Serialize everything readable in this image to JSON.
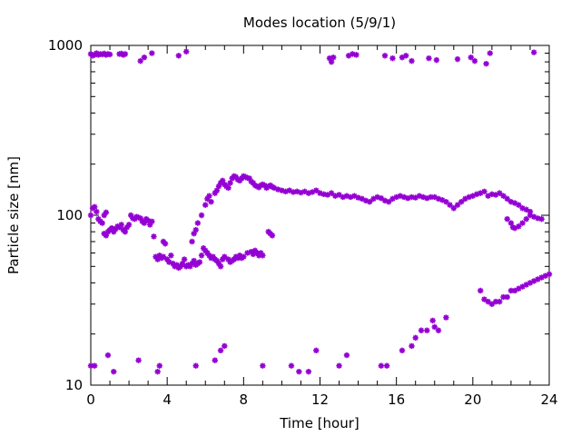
{
  "chart_data": {
    "type": "scatter",
    "title": "Modes location (5/9/1)",
    "xlabel": "Time [hour]",
    "ylabel": "Particle size [nm]",
    "xlim": [
      0,
      24
    ],
    "ylim": [
      10,
      1000
    ],
    "yscale": "log",
    "xticks": [
      0,
      4,
      8,
      12,
      16,
      20,
      24
    ],
    "yticks": [
      10,
      100,
      1000
    ],
    "xtick_labels": [
      "0",
      "4",
      "8",
      "12",
      "16",
      "20",
      "24"
    ],
    "ytick_labels": [
      "10",
      "100",
      "1000"
    ],
    "grid": false,
    "legend": "none",
    "marker_color": "#9400d3",
    "series": [
      {
        "points": [
          [
            0.0,
            890
          ],
          [
            0.1,
            870
          ],
          [
            0.2,
            880
          ],
          [
            0.3,
            900
          ],
          [
            0.4,
            880
          ],
          [
            0.5,
            890
          ],
          [
            0.6,
            885
          ],
          [
            0.7,
            895
          ],
          [
            0.8,
            880
          ],
          [
            0.9,
            890
          ],
          [
            1.0,
            885
          ],
          [
            1.5,
            890
          ],
          [
            1.6,
            895
          ],
          [
            1.7,
            880
          ],
          [
            1.8,
            890
          ],
          [
            2.6,
            810
          ],
          [
            2.8,
            850
          ],
          [
            3.2,
            900
          ],
          [
            4.6,
            870
          ],
          [
            5.0,
            920
          ],
          [
            12.5,
            840
          ],
          [
            12.6,
            800
          ],
          [
            12.7,
            850
          ],
          [
            13.5,
            870
          ],
          [
            13.7,
            890
          ],
          [
            13.9,
            880
          ],
          [
            15.4,
            870
          ],
          [
            15.8,
            840
          ],
          [
            16.3,
            850
          ],
          [
            16.5,
            870
          ],
          [
            16.8,
            810
          ],
          [
            17.7,
            840
          ],
          [
            18.1,
            820
          ],
          [
            19.2,
            830
          ],
          [
            19.9,
            850
          ],
          [
            20.1,
            810
          ],
          [
            20.7,
            780
          ],
          [
            20.9,
            900
          ],
          [
            23.2,
            910
          ],
          [
            0.0,
            100
          ],
          [
            0.1,
            110
          ],
          [
            0.2,
            112
          ],
          [
            0.3,
            105
          ],
          [
            0.4,
            95
          ],
          [
            0.5,
            92
          ],
          [
            0.6,
            90
          ],
          [
            0.7,
            100
          ],
          [
            0.8,
            104
          ],
          [
            0.7,
            78
          ],
          [
            0.8,
            76
          ],
          [
            0.9,
            80
          ],
          [
            1.0,
            82
          ],
          [
            1.1,
            84
          ],
          [
            1.2,
            80
          ],
          [
            1.3,
            83
          ],
          [
            1.4,
            86
          ],
          [
            1.5,
            85
          ],
          [
            1.6,
            88
          ],
          [
            1.7,
            82
          ],
          [
            1.8,
            80
          ],
          [
            1.9,
            85
          ],
          [
            2.0,
            88
          ],
          [
            2.1,
            100
          ],
          [
            2.2,
            96
          ],
          [
            2.3,
            95
          ],
          [
            2.4,
            98
          ],
          [
            2.5,
            97
          ],
          [
            2.6,
            96
          ],
          [
            2.7,
            92
          ],
          [
            2.8,
            90
          ],
          [
            2.9,
            95
          ],
          [
            3.0,
            93
          ],
          [
            3.1,
            88
          ],
          [
            3.2,
            92
          ],
          [
            3.3,
            75
          ],
          [
            3.4,
            57
          ],
          [
            3.5,
            55
          ],
          [
            3.6,
            58
          ],
          [
            3.7,
            56
          ],
          [
            3.8,
            57
          ],
          [
            4.0,
            55
          ],
          [
            4.1,
            53
          ],
          [
            4.2,
            58
          ],
          [
            4.3,
            52
          ],
          [
            4.4,
            50
          ],
          [
            4.5,
            51
          ],
          [
            4.6,
            49
          ],
          [
            4.7,
            50
          ],
          [
            4.8,
            52
          ],
          [
            4.9,
            55
          ],
          [
            5.0,
            50
          ],
          [
            5.1,
            51
          ],
          [
            5.2,
            50
          ],
          [
            5.3,
            52
          ],
          [
            5.4,
            54
          ],
          [
            5.5,
            51
          ],
          [
            5.6,
            52
          ],
          [
            5.7,
            53
          ],
          [
            5.8,
            58
          ],
          [
            5.9,
            64
          ],
          [
            6.0,
            62
          ],
          [
            6.1,
            60
          ],
          [
            6.2,
            58
          ],
          [
            6.3,
            56
          ],
          [
            6.4,
            57
          ],
          [
            6.5,
            55
          ],
          [
            6.6,
            54
          ],
          [
            6.7,
            52
          ],
          [
            6.8,
            50
          ],
          [
            6.9,
            55
          ],
          [
            7.0,
            57
          ],
          [
            7.2,
            55
          ],
          [
            7.3,
            53
          ],
          [
            7.4,
            54
          ],
          [
            7.5,
            55
          ],
          [
            7.6,
            57
          ],
          [
            7.7,
            56
          ],
          [
            7.8,
            58
          ],
          [
            7.9,
            56
          ],
          [
            8.0,
            57
          ],
          [
            8.2,
            60
          ],
          [
            8.4,
            61
          ],
          [
            8.5,
            59
          ],
          [
            8.6,
            62
          ],
          [
            8.7,
            60
          ],
          [
            8.8,
            58
          ],
          [
            8.9,
            60
          ],
          [
            9.0,
            58
          ],
          [
            9.3,
            80
          ],
          [
            9.4,
            78
          ],
          [
            9.5,
            76
          ],
          [
            3.8,
            70
          ],
          [
            3.9,
            68
          ],
          [
            5.3,
            70
          ],
          [
            5.4,
            78
          ],
          [
            5.5,
            82
          ],
          [
            5.6,
            90
          ],
          [
            5.8,
            100
          ],
          [
            6.0,
            115
          ],
          [
            6.1,
            125
          ],
          [
            6.2,
            130
          ],
          [
            6.3,
            120
          ],
          [
            6.5,
            135
          ],
          [
            6.6,
            140
          ],
          [
            6.7,
            148
          ],
          [
            6.8,
            155
          ],
          [
            6.9,
            160
          ],
          [
            7.0,
            152
          ],
          [
            7.1,
            148
          ],
          [
            7.2,
            145
          ],
          [
            7.3,
            155
          ],
          [
            7.4,
            165
          ],
          [
            7.5,
            170
          ],
          [
            7.6,
            168
          ],
          [
            7.7,
            162
          ],
          [
            7.8,
            160
          ],
          [
            7.9,
            165
          ],
          [
            8.0,
            170
          ],
          [
            8.1,
            168
          ],
          [
            8.2,
            166
          ],
          [
            8.3,
            165
          ],
          [
            8.4,
            158
          ],
          [
            8.5,
            155
          ],
          [
            8.6,
            150
          ],
          [
            8.7,
            148
          ],
          [
            8.8,
            146
          ],
          [
            8.9,
            150
          ],
          [
            9.0,
            152
          ],
          [
            9.1,
            150
          ],
          [
            9.2,
            145
          ],
          [
            9.3,
            148
          ],
          [
            9.4,
            150
          ],
          [
            9.5,
            147
          ],
          [
            9.6,
            145
          ],
          [
            9.8,
            142
          ],
          [
            10.0,
            140
          ],
          [
            10.2,
            138
          ],
          [
            10.4,
            140
          ],
          [
            10.6,
            137
          ],
          [
            10.8,
            138
          ],
          [
            11.0,
            136
          ],
          [
            11.2,
            138
          ],
          [
            11.4,
            135
          ],
          [
            11.6,
            137
          ],
          [
            11.8,
            140
          ],
          [
            12.0,
            135
          ],
          [
            12.2,
            133
          ],
          [
            12.4,
            132
          ],
          [
            12.6,
            135
          ],
          [
            12.8,
            130
          ],
          [
            13.0,
            132
          ],
          [
            13.2,
            128
          ],
          [
            13.4,
            130
          ],
          [
            13.6,
            128
          ],
          [
            13.8,
            130
          ],
          [
            14.0,
            127
          ],
          [
            14.2,
            125
          ],
          [
            14.4,
            122
          ],
          [
            14.6,
            120
          ],
          [
            14.8,
            125
          ],
          [
            15.0,
            128
          ],
          [
            15.2,
            126
          ],
          [
            15.4,
            122
          ],
          [
            15.6,
            120
          ],
          [
            15.8,
            125
          ],
          [
            16.0,
            128
          ],
          [
            16.2,
            130
          ],
          [
            16.4,
            128
          ],
          [
            16.6,
            126
          ],
          [
            16.8,
            128
          ],
          [
            17.0,
            127
          ],
          [
            17.2,
            130
          ],
          [
            17.4,
            128
          ],
          [
            17.6,
            126
          ],
          [
            17.8,
            128
          ],
          [
            18.0,
            128
          ],
          [
            18.2,
            125
          ],
          [
            18.4,
            123
          ],
          [
            18.6,
            120
          ],
          [
            18.8,
            115
          ],
          [
            19.0,
            110
          ],
          [
            19.2,
            115
          ],
          [
            19.4,
            120
          ],
          [
            19.6,
            125
          ],
          [
            19.8,
            128
          ],
          [
            20.0,
            130
          ],
          [
            20.2,
            133
          ],
          [
            20.4,
            135
          ],
          [
            20.6,
            138
          ],
          [
            20.8,
            130
          ],
          [
            21.0,
            133
          ],
          [
            21.2,
            132
          ],
          [
            21.4,
            135
          ],
          [
            21.6,
            130
          ],
          [
            21.8,
            125
          ],
          [
            22.0,
            120
          ],
          [
            22.2,
            118
          ],
          [
            22.4,
            115
          ],
          [
            22.6,
            110
          ],
          [
            22.8,
            108
          ],
          [
            23.0,
            105
          ],
          [
            23.2,
            98
          ],
          [
            23.4,
            96
          ],
          [
            23.6,
            95
          ],
          [
            21.8,
            95
          ],
          [
            22.0,
            90
          ],
          [
            22.1,
            85
          ],
          [
            22.2,
            84
          ],
          [
            22.4,
            86
          ],
          [
            22.6,
            90
          ],
          [
            22.8,
            95
          ],
          [
            23.0,
            100
          ],
          [
            20.4,
            36
          ],
          [
            20.6,
            32
          ],
          [
            20.8,
            31
          ],
          [
            21.0,
            30
          ],
          [
            21.2,
            31
          ],
          [
            21.4,
            31
          ],
          [
            21.6,
            33
          ],
          [
            21.8,
            33
          ],
          [
            22.0,
            36
          ],
          [
            22.2,
            36
          ],
          [
            22.4,
            37
          ],
          [
            22.6,
            38
          ],
          [
            22.8,
            39
          ],
          [
            23.0,
            40
          ],
          [
            23.2,
            41
          ],
          [
            23.4,
            42
          ],
          [
            23.6,
            43
          ],
          [
            23.8,
            44
          ],
          [
            24.0,
            45
          ],
          [
            0.0,
            13
          ],
          [
            0.2,
            13
          ],
          [
            0.9,
            15
          ],
          [
            1.2,
            12
          ],
          [
            2.5,
            14
          ],
          [
            3.5,
            12
          ],
          [
            3.6,
            13
          ],
          [
            5.5,
            13
          ],
          [
            6.5,
            14
          ],
          [
            6.8,
            16
          ],
          [
            7.0,
            17
          ],
          [
            9.0,
            13
          ],
          [
            10.5,
            13
          ],
          [
            10.9,
            12
          ],
          [
            11.4,
            12
          ],
          [
            11.8,
            16
          ],
          [
            13.0,
            13
          ],
          [
            13.4,
            15
          ],
          [
            15.2,
            13
          ],
          [
            15.5,
            13
          ],
          [
            16.3,
            16
          ],
          [
            16.8,
            17
          ],
          [
            17.0,
            19
          ],
          [
            17.3,
            21
          ],
          [
            17.6,
            21
          ],
          [
            17.9,
            24
          ],
          [
            18.0,
            22
          ],
          [
            18.2,
            21
          ],
          [
            18.6,
            25
          ]
        ]
      }
    ]
  }
}
